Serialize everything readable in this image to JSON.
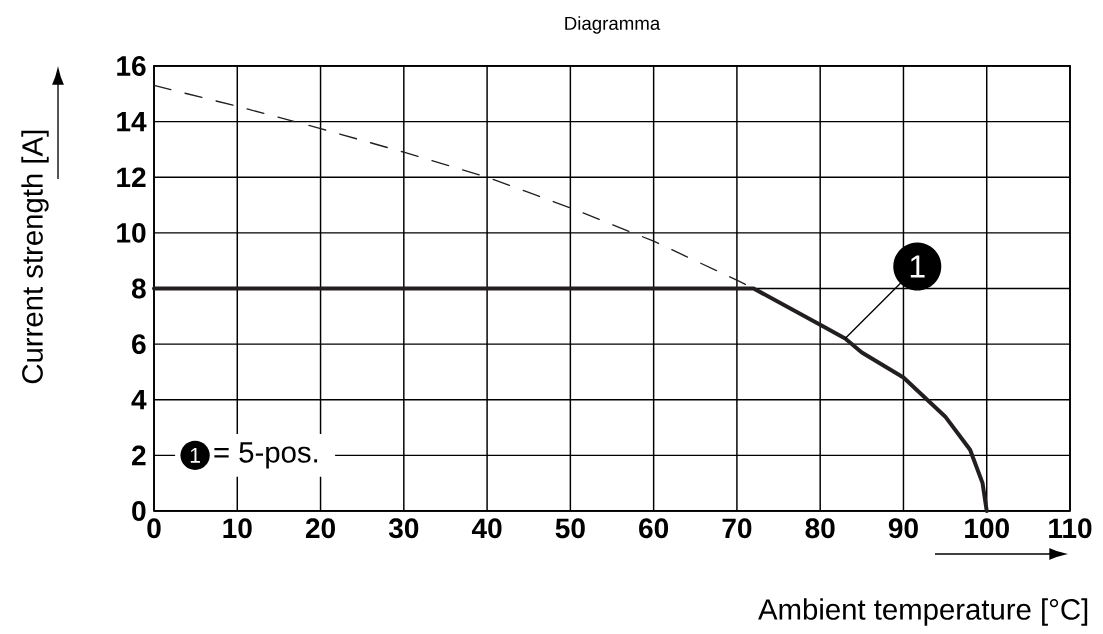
{
  "chart_data": {
    "type": "line",
    "title": "Diagramma",
    "xlabel": "Ambient temperature [°C]",
    "ylabel": "Current strength [A]",
    "series": [
      {
        "color": "#231f20",
        "line_style": "dashed",
        "x": [
          0,
          10,
          20,
          30,
          40,
          50,
          60,
          70,
          72
        ],
        "values": [
          15.3,
          14.55,
          13.75,
          12.9,
          12.0,
          10.9,
          9.7,
          8.3,
          8
        ]
      },
      {
        "color": "#231f20",
        "line_style": "solid",
        "x": [
          0,
          72,
          80,
          83,
          85,
          90,
          95,
          98,
          99.5,
          100
        ],
        "values": [
          8,
          8,
          6.7,
          6.2,
          5.7,
          4.8,
          3.4,
          2.2,
          1.0,
          0
        ]
      }
    ],
    "xlim": [
      0,
      110
    ],
    "ylim": [
      0,
      16
    ],
    "xticks": [
      0,
      10,
      20,
      30,
      40,
      50,
      60,
      70,
      80,
      90,
      100,
      110
    ],
    "yticks": [
      0,
      2,
      4,
      6,
      8,
      10,
      12,
      14,
      16
    ],
    "grid": true,
    "marker": "none",
    "annotations": [
      {
        "text": "1",
        "x": 83,
        "y": 6.2
      },
      "1",
      "= 5-pos."
    ]
  }
}
